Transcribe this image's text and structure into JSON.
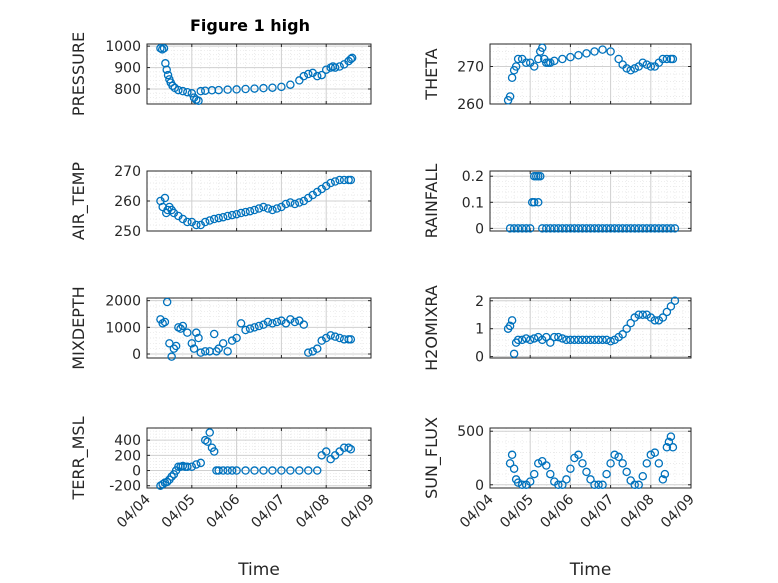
{
  "figure_title": "Figure 1 high",
  "colors": {
    "marker": "#0072BD",
    "axis": "#262626",
    "grid": "#d0d0d0"
  },
  "chart_data": [
    {
      "type": "scatter",
      "name": "pressure",
      "title": "Figure 1 high",
      "ylabel": "PRESSURE",
      "ylim": [
        730,
        1010
      ],
      "yticks": [
        800,
        900,
        1000
      ],
      "ytick_labels": [
        "800",
        "900",
        "1000"
      ],
      "xlim": [
        0,
        5
      ],
      "xticks": [
        0,
        1,
        2,
        3,
        4,
        5
      ],
      "xtick_labels": [],
      "xlabel": "",
      "x": [
        0.3,
        0.34,
        0.38,
        0.41,
        0.44,
        0.47,
        0.5,
        0.53,
        0.57,
        0.62,
        0.7,
        0.8,
        0.9,
        1.0,
        1.05,
        1.1,
        1.15,
        1.2,
        1.3,
        1.45,
        1.6,
        1.8,
        2.0,
        2.2,
        2.4,
        2.6,
        2.8,
        3.0,
        3.2,
        3.4,
        3.5,
        3.6,
        3.7,
        3.8,
        3.9,
        4.0,
        4.1,
        4.15,
        4.2,
        4.3,
        4.4,
        4.5,
        4.55,
        4.58
      ],
      "y": [
        990,
        985,
        990,
        920,
        890,
        865,
        845,
        830,
        815,
        805,
        795,
        790,
        785,
        780,
        760,
        750,
        745,
        790,
        792,
        794,
        795,
        797,
        798,
        800,
        802,
        804,
        806,
        810,
        820,
        840,
        860,
        870,
        875,
        860,
        865,
        890,
        900,
        905,
        900,
        905,
        915,
        930,
        940,
        945
      ]
    },
    {
      "type": "scatter",
      "name": "theta",
      "title": "",
      "ylabel": "THETA",
      "ylim": [
        260,
        276
      ],
      "yticks": [
        260,
        270
      ],
      "ytick_labels": [
        "260",
        "270"
      ],
      "xlim": [
        0,
        5
      ],
      "xticks": [
        0,
        1,
        2,
        3,
        4,
        5
      ],
      "xtick_labels": [],
      "xlabel": "",
      "x": [
        0.45,
        0.5,
        0.55,
        0.6,
        0.65,
        0.7,
        0.8,
        0.9,
        1.0,
        1.1,
        1.2,
        1.25,
        1.3,
        1.35,
        1.4,
        1.45,
        1.5,
        1.6,
        1.8,
        2.0,
        2.2,
        2.4,
        2.6,
        2.8,
        3.0,
        3.2,
        3.3,
        3.4,
        3.5,
        3.6,
        3.7,
        3.8,
        3.9,
        4.0,
        4.1,
        4.2,
        4.3,
        4.4,
        4.5,
        4.55
      ],
      "y": [
        261,
        262,
        267,
        269,
        270,
        272,
        272,
        271,
        271,
        270,
        272,
        274,
        275,
        272,
        271,
        271,
        271,
        271.5,
        272,
        272.5,
        273,
        273.5,
        274,
        274.5,
        274,
        272,
        270.5,
        269.5,
        269,
        269.5,
        270,
        271,
        270.5,
        270,
        270,
        271,
        272,
        272,
        272,
        272
      ]
    },
    {
      "type": "scatter",
      "name": "air_temp",
      "title": "",
      "ylabel": "AIR_TEMP",
      "ylim": [
        250,
        270
      ],
      "yticks": [
        250,
        260,
        270
      ],
      "ytick_labels": [
        "250",
        "260",
        "270"
      ],
      "xlim": [
        0,
        5
      ],
      "xticks": [
        0,
        1,
        2,
        3,
        4,
        5
      ],
      "xtick_labels": [],
      "xlabel": "",
      "x": [
        0.3,
        0.35,
        0.4,
        0.43,
        0.46,
        0.5,
        0.55,
        0.6,
        0.7,
        0.8,
        0.9,
        1.0,
        1.1,
        1.2,
        1.3,
        1.4,
        1.5,
        1.6,
        1.7,
        1.8,
        1.9,
        2.0,
        2.1,
        2.2,
        2.3,
        2.4,
        2.5,
        2.6,
        2.7,
        2.8,
        2.9,
        3.0,
        3.1,
        3.2,
        3.3,
        3.4,
        3.5,
        3.6,
        3.7,
        3.8,
        3.9,
        4.0,
        4.1,
        4.2,
        4.3,
        4.4,
        4.5,
        4.55
      ],
      "y": [
        260,
        258,
        261,
        256,
        257,
        258,
        257,
        256,
        255,
        254,
        253,
        253,
        252,
        252,
        253,
        253.5,
        254,
        254.3,
        254.6,
        255,
        255.3,
        255.6,
        256,
        256.3,
        256.6,
        257,
        257.5,
        258,
        257.5,
        257,
        257.5,
        258,
        259,
        259.5,
        259,
        259.5,
        260,
        261,
        262,
        263,
        264,
        265,
        266,
        266.5,
        267,
        267,
        267,
        267
      ]
    },
    {
      "type": "scatter",
      "name": "rainfall",
      "title": "",
      "ylabel": "RAINFALL",
      "ylim": [
        -0.01,
        0.22
      ],
      "yticks": [
        0,
        0.1,
        0.2
      ],
      "ytick_labels": [
        "0",
        "0.1",
        "0.2"
      ],
      "xlim": [
        0,
        5
      ],
      "xticks": [
        0,
        1,
        2,
        3,
        4,
        5
      ],
      "xtick_labels": [],
      "xlabel": "",
      "x": [
        0.5,
        0.6,
        0.7,
        0.8,
        0.9,
        1.0,
        1.05,
        1.1,
        1.1,
        1.15,
        1.2,
        1.2,
        1.25,
        1.3,
        1.4,
        1.5,
        1.6,
        1.7,
        1.8,
        1.9,
        2.0,
        2.1,
        2.2,
        2.3,
        2.4,
        2.5,
        2.6,
        2.7,
        2.8,
        2.9,
        3.0,
        3.1,
        3.2,
        3.3,
        3.4,
        3.5,
        3.6,
        3.7,
        3.8,
        3.9,
        4.0,
        4.1,
        4.2,
        4.3,
        4.4,
        4.5,
        4.6
      ],
      "y": [
        0,
        0,
        0,
        0,
        0,
        0,
        0.1,
        0.2,
        0.1,
        0.2,
        0.2,
        0.1,
        0.2,
        0,
        0,
        0,
        0,
        0,
        0,
        0,
        0,
        0,
        0,
        0,
        0,
        0,
        0,
        0,
        0,
        0,
        0,
        0,
        0,
        0,
        0,
        0,
        0,
        0,
        0,
        0,
        0,
        0,
        0,
        0,
        0,
        0,
        0
      ]
    },
    {
      "type": "scatter",
      "name": "mixdepth",
      "title": "",
      "ylabel": "MIXDEPTH",
      "ylim": [
        -150,
        2100
      ],
      "yticks": [
        0,
        1000,
        2000
      ],
      "ytick_labels": [
        "0",
        "1000",
        "2000"
      ],
      "xlim": [
        0,
        5
      ],
      "xticks": [
        0,
        1,
        2,
        3,
        4,
        5
      ],
      "xtick_labels": [],
      "xlabel": "",
      "x": [
        0.3,
        0.35,
        0.4,
        0.45,
        0.5,
        0.55,
        0.6,
        0.65,
        0.7,
        0.75,
        0.8,
        0.9,
        1.0,
        1.05,
        1.1,
        1.15,
        1.2,
        1.3,
        1.4,
        1.5,
        1.55,
        1.6,
        1.7,
        1.8,
        1.9,
        2.0,
        2.1,
        2.2,
        2.3,
        2.4,
        2.5,
        2.6,
        2.7,
        2.8,
        2.9,
        3.0,
        3.1,
        3.2,
        3.3,
        3.4,
        3.5,
        3.6,
        3.7,
        3.8,
        3.9,
        4.0,
        4.1,
        4.2,
        4.3,
        4.4,
        4.5,
        4.55
      ],
      "y": [
        1300,
        1150,
        1200,
        1950,
        400,
        -100,
        200,
        300,
        1000,
        950,
        1050,
        800,
        400,
        200,
        800,
        600,
        50,
        100,
        100,
        750,
        100,
        200,
        400,
        100,
        500,
        600,
        1150,
        900,
        950,
        1000,
        1050,
        1100,
        1200,
        1150,
        1200,
        1250,
        1150,
        1300,
        1200,
        1250,
        1100,
        50,
        100,
        200,
        500,
        600,
        700,
        650,
        600,
        550,
        550,
        550
      ]
    },
    {
      "type": "scatter",
      "name": "h2omixra",
      "title": "",
      "ylabel": "H2OMIXRA",
      "ylim": [
        -0.05,
        2.1
      ],
      "yticks": [
        0,
        1,
        2
      ],
      "ytick_labels": [
        "0",
        "1",
        "2"
      ],
      "xlim": [
        0,
        5
      ],
      "xticks": [
        0,
        1,
        2,
        3,
        4,
        5
      ],
      "xtick_labels": [],
      "xlabel": "",
      "x": [
        0.45,
        0.5,
        0.55,
        0.6,
        0.65,
        0.7,
        0.8,
        0.9,
        1.0,
        1.1,
        1.2,
        1.3,
        1.4,
        1.5,
        1.6,
        1.7,
        1.8,
        1.9,
        2.0,
        2.1,
        2.2,
        2.3,
        2.4,
        2.5,
        2.6,
        2.7,
        2.8,
        2.9,
        3.0,
        3.1,
        3.2,
        3.3,
        3.4,
        3.5,
        3.6,
        3.7,
        3.8,
        3.9,
        4.0,
        4.1,
        4.2,
        4.3,
        4.4,
        4.5,
        4.6
      ],
      "y": [
        1.0,
        1.1,
        1.3,
        0.1,
        0.5,
        0.6,
        0.6,
        0.65,
        0.6,
        0.65,
        0.7,
        0.6,
        0.7,
        0.5,
        0.7,
        0.7,
        0.65,
        0.6,
        0.6,
        0.6,
        0.6,
        0.6,
        0.6,
        0.6,
        0.6,
        0.6,
        0.6,
        0.6,
        0.55,
        0.6,
        0.7,
        0.8,
        1.0,
        1.2,
        1.4,
        1.5,
        1.5,
        1.5,
        1.4,
        1.3,
        1.3,
        1.4,
        1.6,
        1.8,
        2.0
      ]
    },
    {
      "type": "scatter",
      "name": "terr_msl",
      "title": "",
      "ylabel": "TERR_MSL",
      "ylim": [
        -230,
        560
      ],
      "yticks": [
        -200,
        0,
        200,
        400
      ],
      "ytick_labels": [
        "-200",
        "0",
        "200",
        "400"
      ],
      "xlim": [
        0,
        5
      ],
      "xticks": [
        0,
        1,
        2,
        3,
        4,
        5
      ],
      "xtick_labels": [
        "04/04",
        "04/05",
        "04/06",
        "04/07",
        "04/08",
        "04/09"
      ],
      "xlabel": "Time",
      "x": [
        0.3,
        0.35,
        0.4,
        0.45,
        0.5,
        0.55,
        0.6,
        0.65,
        0.7,
        0.75,
        0.8,
        0.85,
        0.9,
        1.0,
        1.1,
        1.2,
        1.3,
        1.35,
        1.4,
        1.45,
        1.5,
        1.55,
        1.6,
        1.7,
        1.8,
        1.9,
        2.0,
        2.2,
        2.4,
        2.6,
        2.8,
        3.0,
        3.2,
        3.4,
        3.6,
        3.8,
        3.9,
        4.0,
        4.1,
        4.2,
        4.3,
        4.4,
        4.5,
        4.55
      ],
      "y": [
        -200,
        -180,
        -160,
        -150,
        -120,
        -80,
        -50,
        0,
        50,
        50,
        60,
        50,
        50,
        50,
        80,
        100,
        400,
        380,
        500,
        300,
        250,
        0,
        0,
        0,
        0,
        0,
        0,
        0,
        0,
        0,
        0,
        0,
        0,
        0,
        0,
        0,
        200,
        250,
        150,
        200,
        250,
        300,
        300,
        280
      ]
    },
    {
      "type": "scatter",
      "name": "sun_flux",
      "title": "",
      "ylabel": "SUN_FLUX",
      "ylim": [
        -30,
        530
      ],
      "yticks": [
        0,
        500
      ],
      "ytick_labels": [
        "0",
        "500"
      ],
      "xlim": [
        0,
        5
      ],
      "xticks": [
        0,
        1,
        2,
        3,
        4,
        5
      ],
      "xtick_labels": [
        "04/04",
        "04/05",
        "04/06",
        "04/07",
        "04/08",
        "04/09"
      ],
      "xlabel": "Time",
      "x": [
        0.5,
        0.55,
        0.6,
        0.65,
        0.7,
        0.8,
        0.9,
        1.0,
        1.1,
        1.2,
        1.3,
        1.4,
        1.5,
        1.6,
        1.7,
        1.8,
        1.9,
        2.0,
        2.1,
        2.2,
        2.3,
        2.4,
        2.5,
        2.6,
        2.7,
        2.8,
        2.9,
        3.0,
        3.1,
        3.2,
        3.3,
        3.4,
        3.5,
        3.6,
        3.7,
        3.8,
        3.9,
        4.0,
        4.1,
        4.2,
        4.3,
        4.35,
        4.4,
        4.45,
        4.5,
        4.55
      ],
      "y": [
        200,
        280,
        150,
        50,
        20,
        0,
        0,
        30,
        100,
        200,
        220,
        180,
        100,
        30,
        0,
        0,
        50,
        150,
        250,
        280,
        200,
        120,
        50,
        0,
        0,
        0,
        100,
        200,
        280,
        260,
        200,
        120,
        40,
        0,
        0,
        80,
        200,
        280,
        300,
        200,
        50,
        100,
        350,
        400,
        450,
        350
      ]
    }
  ]
}
